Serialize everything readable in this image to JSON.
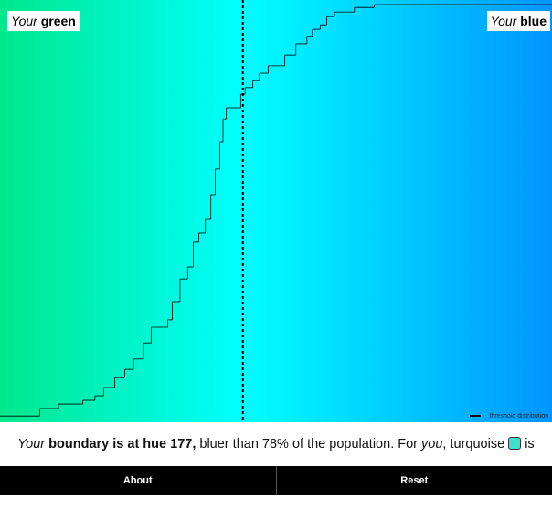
{
  "chart_data": {
    "type": "step",
    "x": [
      155,
      158.6,
      160.3,
      162.5,
      163.6,
      164.4,
      165.4,
      166.3,
      167.1,
      168.0,
      168.7,
      170.2,
      170.6,
      171.3,
      172.0,
      172.5,
      173.0,
      173.6,
      174.1,
      174.5,
      174.9,
      175.2,
      175.5,
      176.8,
      177.2,
      177.9,
      178.5,
      179.3,
      180.8,
      181.8,
      182.8,
      183.3,
      184.0,
      184.6,
      185.3,
      187.1,
      188.9
    ],
    "series": [
      {
        "name": "threshold distribution",
        "color": "#000000",
        "values": [
          0.4,
          2.2,
          3.3,
          4.2,
          5.3,
          7.3,
          9.7,
          11.7,
          14.2,
          18.1,
          21.9,
          23.7,
          28.1,
          33.6,
          36.5,
          42.5,
          44.7,
          48.0,
          54.0,
          60.2,
          66.8,
          72.3,
          75.0,
          78.3,
          79.9,
          81.6,
          83.4,
          85.2,
          87.8,
          90.5,
          92.3,
          94.0,
          95.1,
          97.1,
          98.2,
          99.3,
          100
        ]
      }
    ],
    "xlim": [
      155,
      205
    ],
    "ylim": [
      0,
      100
    ],
    "boundary": 177,
    "legend": "lower right",
    "left_label": {
      "em": "Your",
      "strong": "green"
    },
    "right_label": {
      "em": "Your",
      "strong": "blue"
    }
  },
  "sentence": {
    "your": "Your",
    "boundary_prefix": "boundary is at hue",
    "boundary_suffix": ",",
    "middle": "bluer than 78% of the population. For",
    "you": "you",
    "turquoise": ", turquoise",
    "swatch_color": "#40e0d0",
    "end": "is green."
  },
  "buttons": [
    "About",
    "Reset"
  ]
}
